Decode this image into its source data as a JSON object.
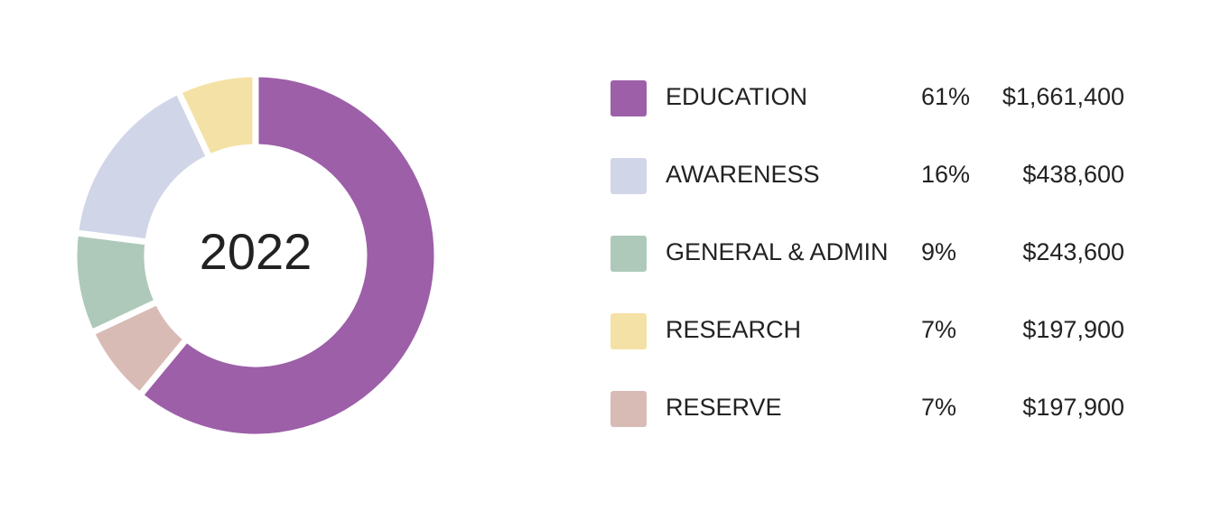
{
  "chart_data": {
    "type": "donut",
    "center_label": "2022",
    "categories": [
      "EDUCATION",
      "AWARENESS",
      "GENERAL & ADMIN",
      "RESEARCH",
      "RESERVE"
    ],
    "values": [
      61,
      16,
      9,
      7,
      7
    ],
    "value_labels": [
      "61%",
      "16%",
      "9%",
      "7%",
      "7%"
    ],
    "amounts": [
      1661400,
      438600,
      243600,
      197900,
      197900
    ],
    "amount_labels": [
      "$1,661,400",
      "$438,600",
      "$243,600",
      "$197,900",
      "$197,900"
    ],
    "colors": [
      "#9d5fa8",
      "#d0d5e8",
      "#aec9b9",
      "#f4e1a5",
      "#d9bbb5"
    ]
  }
}
